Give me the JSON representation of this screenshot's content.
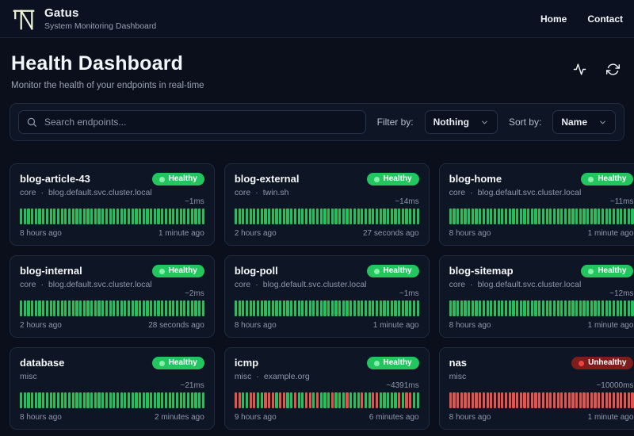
{
  "brand": {
    "name": "Gatus",
    "tagline": "System Monitoring Dashboard"
  },
  "nav": [
    {
      "label": "Home"
    },
    {
      "label": "Contact"
    }
  ],
  "page": {
    "title": "Health Dashboard",
    "subtitle": "Monitor the health of your endpoints in real-time"
  },
  "toolbar": {
    "search_placeholder": "Search endpoints...",
    "filter_label": "Filter by:",
    "filter_value": "Nothing",
    "sort_label": "Sort by:",
    "sort_value": "Name"
  },
  "colors": {
    "healthy_badge": "#22c55e",
    "unhealthy_badge": "#7f1d1d",
    "bar_up": "#26bf5c",
    "bar_down": "#e4544d",
    "background": "#0a0f1b",
    "card_background": "#0e1524"
  },
  "icons": [
    "brand-logo-icon",
    "search-icon",
    "chevron-down-icon",
    "activity-icon",
    "refresh-icon",
    "status-dot-icon"
  ],
  "endpoints": [
    {
      "name": "blog-article-43",
      "group": "core",
      "host": "blog.default.svc.cluster.local",
      "status": "Healthy",
      "latency": "~1ms",
      "oldest": "8 hours ago",
      "newest": "1 minute ago",
      "history": "GGGGGGGGGGGGGGGGGGGGGGGGGGGGGGGGGGGGGGGGGGGGGGGGGG"
    },
    {
      "name": "blog-external",
      "group": "core",
      "host": "twin.sh",
      "status": "Healthy",
      "latency": "~14ms",
      "oldest": "2 hours ago",
      "newest": "27 seconds ago",
      "history": "GGGGGGGGGGGGGGGGGGGGGGGGGGGGGGGGGGGGGGGGGGGGGGGGGG"
    },
    {
      "name": "blog-home",
      "group": "core",
      "host": "blog.default.svc.cluster.local",
      "status": "Healthy",
      "latency": "~11ms",
      "oldest": "8 hours ago",
      "newest": "1 minute ago",
      "history": "GGGGGGGGGGGGGGGGGGGGGGGGGGGGGGGGGGGGGGGGGGGGGGGGGG"
    },
    {
      "name": "blog-internal",
      "group": "core",
      "host": "blog.default.svc.cluster.local",
      "status": "Healthy",
      "latency": "~2ms",
      "oldest": "2 hours ago",
      "newest": "28 seconds ago",
      "history": "GGGGGGGGGGGGGGGGGGGGGGGGGGGGGGGGGGGGGGGGGGGGGGGGGG"
    },
    {
      "name": "blog-poll",
      "group": "core",
      "host": "blog.default.svc.cluster.local",
      "status": "Healthy",
      "latency": "~1ms",
      "oldest": "8 hours ago",
      "newest": "1 minute ago",
      "history": "GGGGGGGGGGGGGGGGGGGGGGGGGGGGGGGGGGGGGGGGGGGGGGGGGG"
    },
    {
      "name": "blog-sitemap",
      "group": "core",
      "host": "blog.default.svc.cluster.local",
      "status": "Healthy",
      "latency": "~12ms",
      "oldest": "8 hours ago",
      "newest": "1 minute ago",
      "history": "GGGGGGGGGGGGGGGGGGGGGGGGGGGGGGGGGGGGGGGGGGGGGGGGGG"
    },
    {
      "name": "database",
      "group": "misc",
      "host": null,
      "status": "Healthy",
      "latency": "~21ms",
      "oldest": "8 hours ago",
      "newest": "2 minutes ago",
      "history": "GGGGGGGGGGGGGGGGGGGGGGGGGGGGGGGGGGGGGGGGGGGGGGGGGG"
    },
    {
      "name": "icmp",
      "group": "misc",
      "host": "example.org",
      "status": "Healthy",
      "latency": "~4391ms",
      "oldest": "9 hours ago",
      "newest": "6 minutes ago",
      "history": "RRGGRRGGRRRGRRGGRGGRRGRGGGRGGGRGGGRGGRRGGGGGRGRRGG"
    },
    {
      "name": "nas",
      "group": "misc",
      "host": null,
      "status": "Unhealthy",
      "latency": "~10000ms",
      "oldest": "8 hours ago",
      "newest": "1 minute ago",
      "history": "RRRRRRRRRRRRRRRRRRRRRRRRRRRRRRRRRRRRRRRRRRRRRRRRRR"
    }
  ]
}
